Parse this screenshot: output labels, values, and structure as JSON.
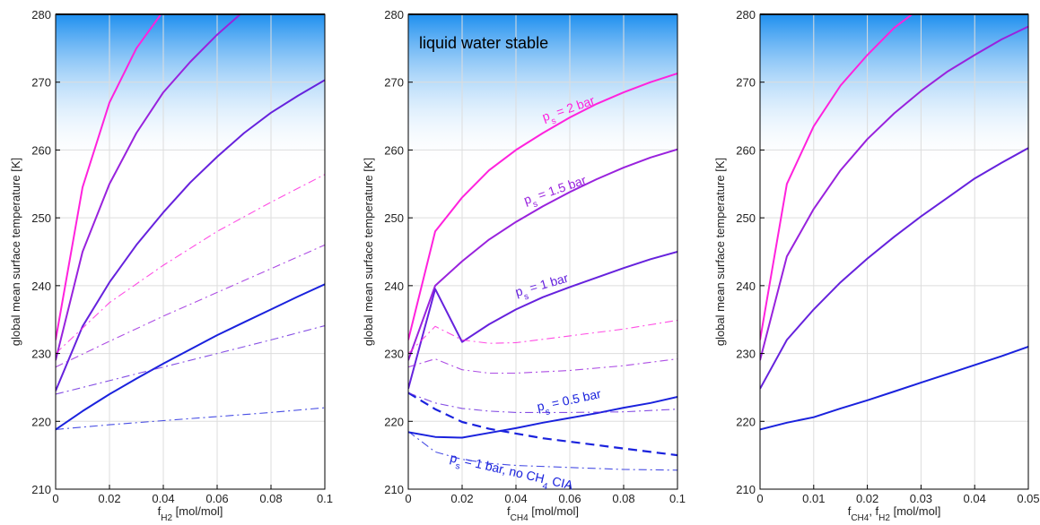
{
  "figure": {
    "colors": {
      "magenta": "#ff22dd",
      "purple": "#9922dd",
      "violet": "#6622dd",
      "blue": "#1a22dd",
      "sky_top": "#1e8fef",
      "sky_bottom": "#ffffff",
      "grid": "#dddddd"
    }
  },
  "chart_data": [
    {
      "type": "line",
      "ylabel": "global mean surface temperature [K]",
      "xlabel": "f_H2 [mol/mol]",
      "xlabel_main": "f",
      "xlabel_sub": "H2",
      "xlabel_tail": " [mol/mol]",
      "xlim": [
        0,
        0.1
      ],
      "ylim": [
        210,
        280
      ],
      "xticks": [
        0,
        0.02,
        0.04,
        0.06,
        0.08,
        0.1
      ],
      "xtick_labels": [
        "0",
        "0.02",
        "0.04",
        "0.06",
        "0.08",
        "0.1"
      ],
      "yticks": [
        210,
        220,
        230,
        240,
        250,
        260,
        270,
        280
      ],
      "ytick_labels": [
        "210",
        "220",
        "230",
        "240",
        "250",
        "260",
        "270",
        "280"
      ],
      "grid": true,
      "background": "blue gradient at top (liquid water stable region)",
      "series": [
        {
          "color": "magenta",
          "style": "solid",
          "x": [
            0,
            0.01,
            0.02,
            0.03,
            0.04
          ],
          "y": [
            232,
            254.5,
            267,
            275,
            280.5
          ]
        },
        {
          "color": "purple",
          "style": "solid",
          "x": [
            0,
            0.01,
            0.02,
            0.03,
            0.04,
            0.05,
            0.06,
            0.07
          ],
          "y": [
            229,
            245,
            255,
            262.5,
            268.5,
            273,
            277,
            280.5
          ]
        },
        {
          "color": "violet",
          "style": "solid",
          "x": [
            0,
            0.01,
            0.02,
            0.03,
            0.04,
            0.05,
            0.06,
            0.07,
            0.08,
            0.09,
            0.1
          ],
          "y": [
            224.5,
            234,
            240.5,
            246,
            250.8,
            255.2,
            259,
            262.5,
            265.5,
            268,
            270.3
          ]
        },
        {
          "color": "blue",
          "style": "solid",
          "x": [
            0,
            0.01,
            0.02,
            0.03,
            0.04,
            0.05,
            0.06,
            0.07,
            0.08,
            0.09,
            0.1
          ],
          "y": [
            218.8,
            221.5,
            224,
            226.3,
            228.5,
            230.6,
            232.7,
            234.6,
            236.5,
            238.4,
            240.2
          ]
        },
        {
          "color": "magenta",
          "style": "dashdot",
          "x": [
            0,
            0.02,
            0.04,
            0.06,
            0.08,
            0.1
          ],
          "y": [
            230,
            237.5,
            243,
            248,
            252.3,
            256.4
          ]
        },
        {
          "color": "purple",
          "style": "dashdot",
          "x": [
            0,
            0.02,
            0.04,
            0.06,
            0.08,
            0.1
          ],
          "y": [
            228,
            231.8,
            235.5,
            239,
            242.5,
            246
          ]
        },
        {
          "color": "violet",
          "style": "dashdot",
          "x": [
            0,
            0.02,
            0.04,
            0.06,
            0.08,
            0.1
          ],
          "y": [
            224,
            226,
            228,
            230,
            232,
            234.1
          ]
        },
        {
          "color": "blue",
          "style": "dashdot",
          "x": [
            0,
            0.02,
            0.04,
            0.06,
            0.08,
            0.1
          ],
          "y": [
            218.8,
            219.5,
            220.1,
            220.7,
            221.3,
            222
          ]
        }
      ]
    },
    {
      "type": "line",
      "ylabel": "global mean surface temperature [K]",
      "xlabel": "f_CH4 [mol/mol]",
      "xlabel_main": "f",
      "xlabel_sub": "CH4",
      "xlabel_tail": " [mol/mol]",
      "xlim": [
        0,
        0.1
      ],
      "ylim": [
        210,
        280
      ],
      "xticks": [
        0,
        0.02,
        0.04,
        0.06,
        0.08,
        0.1
      ],
      "xtick_labels": [
        "0",
        "0.02",
        "0.04",
        "0.06",
        "0.08",
        "0.1"
      ],
      "yticks": [
        210,
        220,
        230,
        240,
        250,
        260,
        270,
        280
      ],
      "ytick_labels": [
        "210",
        "220",
        "230",
        "240",
        "250",
        "260",
        "270",
        "280"
      ],
      "grid": true,
      "background_label": "liquid water stable",
      "annotations": [
        {
          "text": "p",
          "sub": "s",
          "tail": " = 2 bar",
          "color": "magenta",
          "x": 0.06,
          "y": 265.5,
          "angle": -19
        },
        {
          "text": "p",
          "sub": "s",
          "tail": " = 1.5 bar",
          "color": "purple",
          "x": 0.055,
          "y": 253.5,
          "angle": -19
        },
        {
          "text": "p",
          "sub": "s",
          "tail": " = 1 bar",
          "color": "violet",
          "x": 0.05,
          "y": 239.5,
          "angle": -16
        },
        {
          "text": "p",
          "sub": "s",
          "tail": " = 0.5 bar",
          "color": "blue",
          "x": 0.06,
          "y": 222.5,
          "angle": -12
        },
        {
          "text": "p",
          "sub": "s",
          "tail": " = 1 bar, no CH",
          "sub2": "4",
          "tail2": " CIA",
          "color": "blue",
          "x": 0.038,
          "y": 212,
          "angle": 13
        }
      ],
      "series": [
        {
          "color": "magenta",
          "style": "solid",
          "x": [
            0,
            0.01,
            0.02,
            0.03,
            0.04,
            0.05,
            0.06,
            0.07,
            0.08,
            0.09,
            0.1
          ],
          "y": [
            232,
            248,
            253,
            257,
            260,
            262.5,
            264.8,
            266.8,
            268.5,
            270,
            271.3
          ]
        },
        {
          "color": "purple",
          "style": "solid",
          "x": [
            0,
            0.01,
            0.02,
            0.03,
            0.04,
            0.05,
            0.06,
            0.07,
            0.08,
            0.09,
            0.1
          ],
          "y": [
            229,
            240,
            243.6,
            246.8,
            249.4,
            251.7,
            253.8,
            255.7,
            257.4,
            258.9,
            260.1
          ]
        },
        {
          "color": "violet",
          "style": "solid",
          "x": [
            0,
            0.01,
            0.02,
            0.03,
            0.04,
            0.05,
            0.06,
            0.07,
            0.08,
            0.09,
            0.1
          ],
          "y": [
            224.8,
            239.5,
            231.7,
            234.3,
            236.5,
            238.3,
            239.8,
            241.2,
            242.6,
            243.9,
            245
          ]
        },
        {
          "color": "blue",
          "style": "solid",
          "x": [
            0,
            0.01,
            0.02,
            0.03,
            0.04,
            0.05,
            0.06,
            0.07,
            0.08,
            0.09,
            0.1
          ],
          "y": [
            218.4,
            217.7,
            217.6,
            218.3,
            219,
            219.8,
            220.5,
            221.2,
            222,
            222.7,
            223.6
          ]
        },
        {
          "color": "blue",
          "style": "dashed",
          "x": [
            0,
            0.01,
            0.02,
            0.03,
            0.04,
            0.05,
            0.06,
            0.07,
            0.08,
            0.09,
            0.1
          ],
          "y": [
            224.2,
            221.8,
            219.9,
            218.9,
            218.2,
            217.5,
            217,
            216.5,
            216,
            215.5,
            215
          ]
        },
        {
          "color": "magenta",
          "style": "dashdot",
          "x": [
            0,
            0.01,
            0.02,
            0.03,
            0.04,
            0.06,
            0.08,
            0.1
          ],
          "y": [
            230,
            234,
            232,
            231.5,
            231.6,
            232.6,
            233.6,
            234.9
          ]
        },
        {
          "color": "purple",
          "style": "dashdot",
          "x": [
            0,
            0.01,
            0.02,
            0.03,
            0.04,
            0.06,
            0.08,
            0.1
          ],
          "y": [
            228,
            229.2,
            227.6,
            227.1,
            227.1,
            227.5,
            228.2,
            229.2
          ]
        },
        {
          "color": "violet",
          "style": "dashdot",
          "x": [
            0,
            0.01,
            0.02,
            0.03,
            0.04,
            0.06,
            0.08,
            0.1
          ],
          "y": [
            224.2,
            222.7,
            221.9,
            221.5,
            221.3,
            221.3,
            221.4,
            221.8
          ]
        },
        {
          "color": "blue",
          "style": "dashdot",
          "x": [
            0,
            0.01,
            0.02,
            0.03,
            0.04,
            0.06,
            0.08,
            0.1
          ],
          "y": [
            218.5,
            215.5,
            214.4,
            213.8,
            213.5,
            213.2,
            212.9,
            212.8
          ]
        }
      ]
    },
    {
      "type": "line",
      "ylabel": "global mean surface temperature [K]",
      "xlabel": "f_CH4, f_H2 [mol/mol]",
      "xlabel_main": "f",
      "xlabel_sub": "CH4",
      "xlabel_mid": ", f",
      "xlabel_sub2": "H2",
      "xlabel_tail": " [mol/mol]",
      "xlim": [
        0,
        0.05
      ],
      "ylim": [
        210,
        280
      ],
      "xticks": [
        0,
        0.01,
        0.02,
        0.03,
        0.04,
        0.05
      ],
      "xtick_labels": [
        "0",
        "0.01",
        "0.02",
        "0.03",
        "0.04",
        "0.05"
      ],
      "yticks": [
        210,
        220,
        230,
        240,
        250,
        260,
        270,
        280
      ],
      "ytick_labels": [
        "210",
        "220",
        "230",
        "240",
        "250",
        "260",
        "270",
        "280"
      ],
      "grid": true,
      "series": [
        {
          "color": "magenta",
          "style": "solid",
          "x": [
            0,
            0.005,
            0.01,
            0.015,
            0.02,
            0.025,
            0.03
          ],
          "y": [
            232,
            255,
            263.5,
            269.5,
            274,
            278,
            281
          ]
        },
        {
          "color": "purple",
          "style": "solid",
          "x": [
            0,
            0.005,
            0.01,
            0.015,
            0.02,
            0.025,
            0.03,
            0.035,
            0.04,
            0.045,
            0.05
          ],
          "y": [
            229,
            244.3,
            251.3,
            257,
            261.6,
            265.4,
            268.7,
            271.6,
            274,
            276.3,
            278.2
          ]
        },
        {
          "color": "violet",
          "style": "solid",
          "x": [
            0,
            0.005,
            0.01,
            0.015,
            0.02,
            0.025,
            0.03,
            0.035,
            0.04,
            0.045,
            0.05
          ],
          "y": [
            224.8,
            232,
            236.5,
            240.5,
            244,
            247.2,
            250.2,
            253,
            255.8,
            258.1,
            260.3
          ]
        },
        {
          "color": "blue",
          "style": "solid",
          "x": [
            0,
            0.005,
            0.01,
            0.015,
            0.02,
            0.025,
            0.03,
            0.035,
            0.04,
            0.045,
            0.05
          ],
          "y": [
            218.8,
            219.8,
            220.6,
            221.9,
            223.1,
            224.4,
            225.7,
            227,
            228.3,
            229.6,
            231
          ]
        }
      ]
    }
  ]
}
